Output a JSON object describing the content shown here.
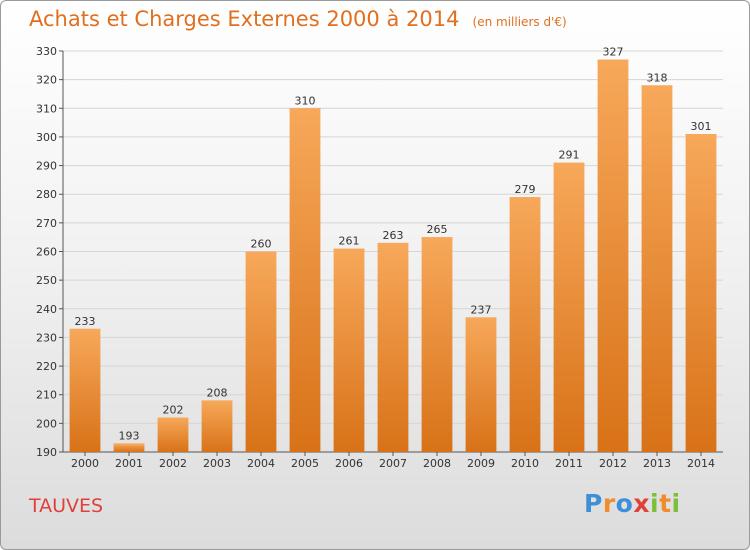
{
  "chart_data": {
    "type": "bar",
    "title": "Achats et Charges Externes 2000 à 2014",
    "subtitle": "(en milliers d'€)",
    "xlabel": "",
    "ylabel": "",
    "categories": [
      "2000",
      "2001",
      "2002",
      "2003",
      "2004",
      "2005",
      "2006",
      "2007",
      "2008",
      "2009",
      "2010",
      "2011",
      "2012",
      "2013",
      "2014"
    ],
    "values": [
      233,
      193,
      202,
      208,
      260,
      310,
      261,
      263,
      265,
      237,
      279,
      291,
      327,
      318,
      301
    ],
    "ylim": [
      190,
      330
    ],
    "ytick_step": 10,
    "grid": true,
    "legend": "none",
    "bar_color": "#f08c2e",
    "bar_color_light": "#f7a85a",
    "bar_color_dark": "#d87218"
  },
  "footer": {
    "commune": "TAUVES",
    "commune_color": "#e0403a",
    "brand": {
      "letters": [
        {
          "ch": "P",
          "color": "#3d8fd8"
        },
        {
          "ch": "r",
          "color": "#f08c2e"
        },
        {
          "ch": "o",
          "color": "#3d8fd8"
        },
        {
          "ch": "x",
          "color": "#e0403a"
        },
        {
          "ch": "i",
          "color": "#7bbf3a"
        },
        {
          "ch": "t",
          "color": "#f08c2e"
        },
        {
          "ch": "i",
          "color": "#7bbf3a"
        }
      ]
    }
  }
}
